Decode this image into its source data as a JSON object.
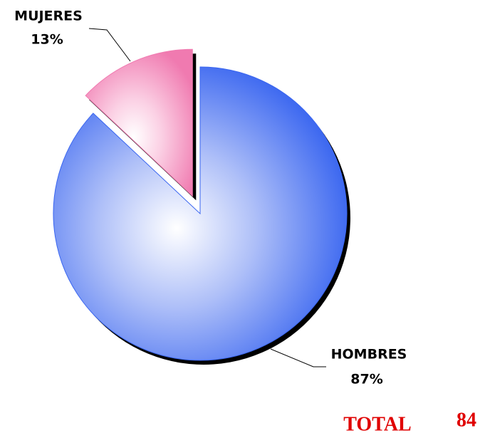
{
  "chart_data": {
    "type": "pie",
    "categories": [
      "HOMBRES",
      "MUJERES"
    ],
    "values": [
      87,
      13
    ],
    "value_labels": [
      "87%",
      "13%"
    ],
    "series_colors": [
      "#3a66f0",
      "#f07ab0"
    ],
    "exploded": [
      false,
      true
    ],
    "total_label": "TOTAL",
    "total": 84
  }
}
